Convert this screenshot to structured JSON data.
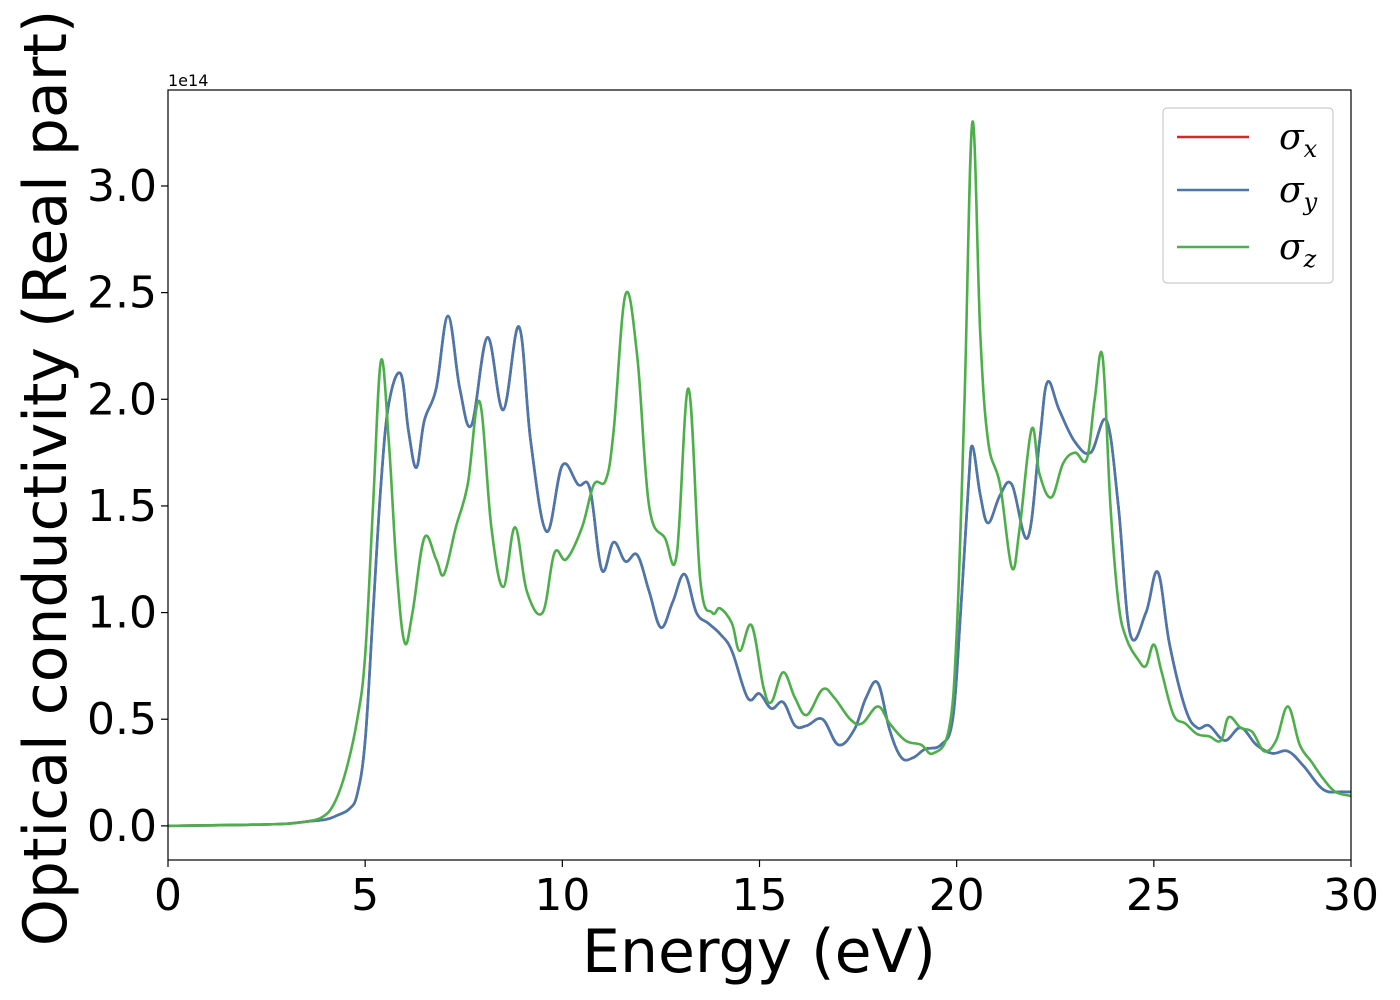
{
  "chart_data": {
    "type": "line",
    "title": "",
    "xlabel": "Energy (eV)",
    "ylabel": "Optical conductivity (Real part)",
    "y_offset_text": "1e14",
    "xlim": [
      0,
      30
    ],
    "ylim": [
      -0.16,
      3.45
    ],
    "xticks": [
      0,
      5,
      10,
      15,
      20,
      25,
      30
    ],
    "xtick_labels": [
      "0",
      "5",
      "10",
      "15",
      "20",
      "25",
      "30"
    ],
    "yticks": [
      0.0,
      0.5,
      1.0,
      1.5,
      2.0,
      2.5,
      3.0
    ],
    "ytick_labels": [
      "0.0",
      "0.5",
      "1.0",
      "1.5",
      "2.0",
      "2.5",
      "3.0"
    ],
    "grid": false,
    "legend_position": "top-right",
    "series": [
      {
        "name": "σ",
        "subscript": "x",
        "color": "#d62728",
        "x": [
          0,
          2,
          3,
          3.5,
          4,
          4.3,
          4.6,
          4.8,
          5.0,
          5.2,
          5.4,
          5.6,
          5.9,
          6.1,
          6.3,
          6.5,
          6.8,
          7.1,
          7.4,
          7.7,
          8.1,
          8.5,
          8.9,
          9.2,
          9.6,
          10.0,
          10.4,
          10.7,
          11.0,
          11.3,
          11.6,
          11.9,
          12.2,
          12.5,
          12.8,
          13.1,
          13.4,
          13.7,
          14.0,
          14.3,
          14.7,
          15.0,
          15.3,
          15.6,
          15.9,
          16.2,
          16.6,
          17.0,
          17.4,
          17.7,
          18.0,
          18.3,
          18.6,
          18.9,
          19.2,
          19.6,
          19.9,
          20.1,
          20.3,
          20.4,
          20.6,
          20.8,
          21.1,
          21.4,
          21.8,
          22.1,
          22.3,
          22.6,
          23.0,
          23.4,
          23.8,
          24.1,
          24.4,
          24.8,
          25.1,
          25.4,
          25.8,
          26.1,
          26.4,
          26.8,
          27.2,
          27.6,
          28.0,
          28.4,
          28.8,
          29.3,
          29.8,
          30.0
        ],
        "y": [
          0.0,
          0.005,
          0.01,
          0.02,
          0.03,
          0.05,
          0.08,
          0.15,
          0.4,
          1.0,
          1.6,
          1.98,
          2.12,
          1.85,
          1.68,
          1.9,
          2.05,
          2.39,
          2.05,
          1.88,
          2.29,
          1.95,
          2.34,
          1.8,
          1.38,
          1.69,
          1.6,
          1.58,
          1.2,
          1.33,
          1.24,
          1.27,
          1.1,
          0.93,
          1.05,
          1.18,
          1.0,
          0.95,
          0.9,
          0.82,
          0.6,
          0.62,
          0.55,
          0.58,
          0.47,
          0.47,
          0.5,
          0.38,
          0.45,
          0.6,
          0.67,
          0.45,
          0.32,
          0.32,
          0.36,
          0.38,
          0.5,
          1.0,
          1.6,
          1.78,
          1.55,
          1.42,
          1.55,
          1.6,
          1.35,
          1.8,
          2.08,
          1.95,
          1.8,
          1.75,
          1.9,
          1.5,
          0.9,
          1.0,
          1.19,
          0.85,
          0.55,
          0.46,
          0.47,
          0.4,
          0.46,
          0.38,
          0.34,
          0.35,
          0.28,
          0.17,
          0.16,
          0.16
        ]
      },
      {
        "name": "σ",
        "subscript": "y",
        "color": "#4878b0",
        "x": [
          0,
          2,
          3,
          3.5,
          4,
          4.3,
          4.6,
          4.8,
          5.0,
          5.2,
          5.4,
          5.6,
          5.9,
          6.1,
          6.3,
          6.5,
          6.8,
          7.1,
          7.4,
          7.7,
          8.1,
          8.5,
          8.9,
          9.2,
          9.6,
          10.0,
          10.4,
          10.7,
          11.0,
          11.3,
          11.6,
          11.9,
          12.2,
          12.5,
          12.8,
          13.1,
          13.4,
          13.7,
          14.0,
          14.3,
          14.7,
          15.0,
          15.3,
          15.6,
          15.9,
          16.2,
          16.6,
          17.0,
          17.4,
          17.7,
          18.0,
          18.3,
          18.6,
          18.9,
          19.2,
          19.6,
          19.9,
          20.1,
          20.3,
          20.4,
          20.6,
          20.8,
          21.1,
          21.4,
          21.8,
          22.1,
          22.3,
          22.6,
          23.0,
          23.4,
          23.8,
          24.1,
          24.4,
          24.8,
          25.1,
          25.4,
          25.8,
          26.1,
          26.4,
          26.8,
          27.2,
          27.6,
          28.0,
          28.4,
          28.8,
          29.3,
          29.8,
          30.0
        ],
        "y": [
          0.0,
          0.005,
          0.01,
          0.02,
          0.03,
          0.05,
          0.08,
          0.15,
          0.4,
          1.0,
          1.6,
          1.98,
          2.12,
          1.85,
          1.68,
          1.9,
          2.05,
          2.39,
          2.05,
          1.88,
          2.29,
          1.95,
          2.34,
          1.8,
          1.38,
          1.69,
          1.6,
          1.58,
          1.2,
          1.33,
          1.24,
          1.27,
          1.1,
          0.93,
          1.05,
          1.18,
          1.0,
          0.95,
          0.9,
          0.82,
          0.6,
          0.62,
          0.55,
          0.58,
          0.47,
          0.47,
          0.5,
          0.38,
          0.45,
          0.6,
          0.67,
          0.45,
          0.32,
          0.32,
          0.36,
          0.38,
          0.5,
          1.0,
          1.6,
          1.78,
          1.55,
          1.42,
          1.55,
          1.6,
          1.35,
          1.8,
          2.08,
          1.95,
          1.8,
          1.75,
          1.9,
          1.5,
          0.9,
          1.0,
          1.19,
          0.85,
          0.55,
          0.46,
          0.47,
          0.4,
          0.46,
          0.38,
          0.34,
          0.35,
          0.28,
          0.17,
          0.16,
          0.16
        ]
      },
      {
        "name": "σ",
        "subscript": "z",
        "color": "#4daf4a",
        "x": [
          0,
          2,
          3,
          3.5,
          3.9,
          4.2,
          4.5,
          4.8,
          5.0,
          5.2,
          5.4,
          5.6,
          5.8,
          6.0,
          6.2,
          6.5,
          6.8,
          7.0,
          7.3,
          7.6,
          7.9,
          8.2,
          8.5,
          8.8,
          9.1,
          9.5,
          9.8,
          10.1,
          10.5,
          10.8,
          11.1,
          11.3,
          11.6,
          11.9,
          12.2,
          12.6,
          12.9,
          13.2,
          13.5,
          13.8,
          14.0,
          14.3,
          14.5,
          14.8,
          15.1,
          15.3,
          15.6,
          15.9,
          16.2,
          16.6,
          16.9,
          17.3,
          17.6,
          18.0,
          18.3,
          18.7,
          19.1,
          19.4,
          19.8,
          20.0,
          20.2,
          20.4,
          20.6,
          20.8,
          21.1,
          21.4,
          21.6,
          21.9,
          22.1,
          22.4,
          22.7,
          23.0,
          23.3,
          23.5,
          23.7,
          23.9,
          24.1,
          24.3,
          24.6,
          24.8,
          25.0,
          25.2,
          25.5,
          25.8,
          26.1,
          26.4,
          26.7,
          26.9,
          27.2,
          27.5,
          27.8,
          28.1,
          28.4,
          28.7,
          29.0,
          29.3,
          29.6,
          30.0
        ],
        "y": [
          0.0,
          0.005,
          0.01,
          0.02,
          0.04,
          0.1,
          0.25,
          0.5,
          0.8,
          1.5,
          2.18,
          1.8,
          1.2,
          0.86,
          1.0,
          1.35,
          1.25,
          1.18,
          1.4,
          1.6,
          1.99,
          1.4,
          1.12,
          1.4,
          1.1,
          1.0,
          1.28,
          1.25,
          1.4,
          1.6,
          1.62,
          1.85,
          2.49,
          2.2,
          1.5,
          1.35,
          1.27,
          2.05,
          1.15,
          1.0,
          1.02,
          0.95,
          0.82,
          0.94,
          0.65,
          0.58,
          0.72,
          0.6,
          0.52,
          0.64,
          0.6,
          0.5,
          0.48,
          0.56,
          0.48,
          0.4,
          0.38,
          0.34,
          0.45,
          0.9,
          2.0,
          3.3,
          2.3,
          1.8,
          1.6,
          1.21,
          1.4,
          1.86,
          1.65,
          1.54,
          1.7,
          1.75,
          1.72,
          2.0,
          2.2,
          1.5,
          1.05,
          0.88,
          0.78,
          0.75,
          0.85,
          0.72,
          0.52,
          0.48,
          0.43,
          0.42,
          0.4,
          0.51,
          0.46,
          0.44,
          0.35,
          0.4,
          0.56,
          0.38,
          0.3,
          0.22,
          0.16,
          0.14
        ]
      }
    ]
  }
}
